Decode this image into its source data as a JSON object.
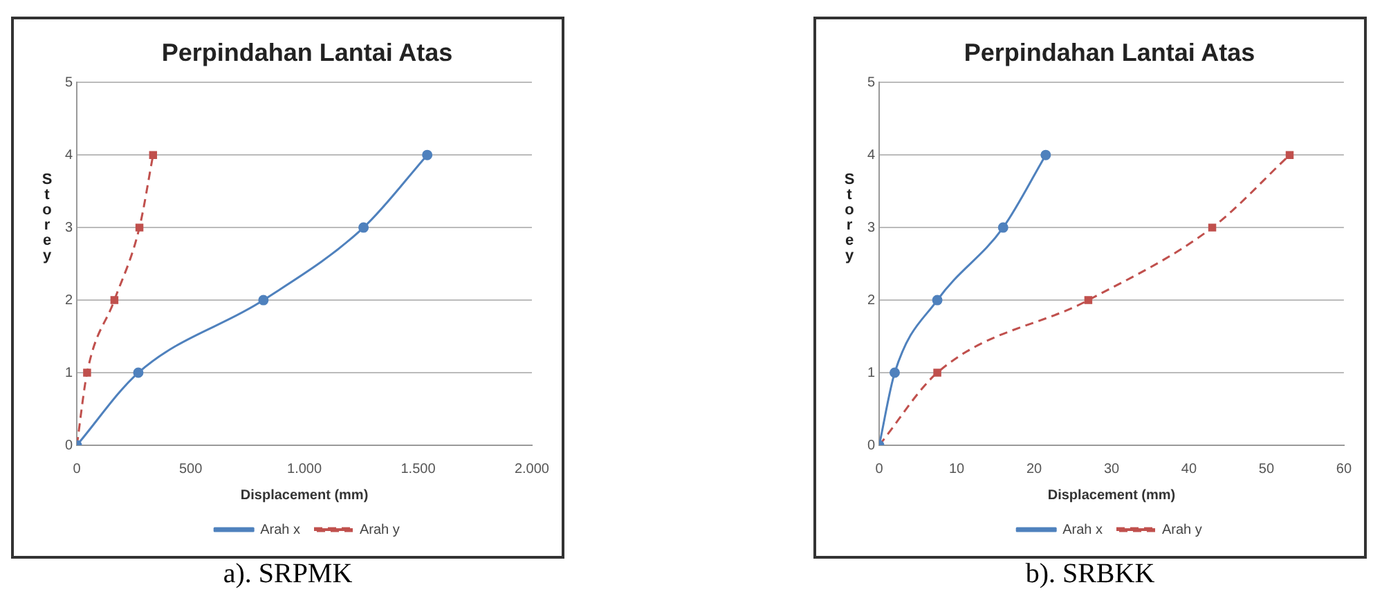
{
  "chart_data": [
    {
      "type": "line",
      "title": "Perpindahan Lantai Atas",
      "xlabel": "Displacement (mm)",
      "ylabel": "Storey",
      "xlim": [
        0,
        2000
      ],
      "xticks": [
        0,
        500,
        {
          "value": 1000,
          "label": "1.000"
        },
        {
          "value": 1500,
          "label": "1.500"
        },
        {
          "value": 2000,
          "label": "2.000"
        }
      ],
      "ylim": [
        0,
        5
      ],
      "yticks": [
        0,
        1,
        2,
        3,
        4,
        5
      ],
      "grid": "y",
      "legend": "bottom",
      "annotations": [
        "a). SRPMK"
      ],
      "series": [
        {
          "name": "Arah x",
          "color": "#4f81bd",
          "x": [
            0,
            270,
            820,
            1260,
            1540
          ],
          "values": [
            0,
            1,
            2,
            3,
            4
          ],
          "marker": "circle",
          "line_style": "solid"
        },
        {
          "name": "Arah y",
          "color": "#c0504d",
          "x": [
            0,
            45,
            165,
            275,
            335
          ],
          "values": [
            0,
            1,
            2,
            3,
            4
          ],
          "marker": "square",
          "line_style": "dashed"
        }
      ]
    },
    {
      "type": "line",
      "title": "Perpindahan Lantai Atas",
      "xlabel": "Displacement (mm)",
      "ylabel": "Storey",
      "xlim": [
        0,
        60
      ],
      "xticks": [
        0,
        10,
        20,
        30,
        40,
        50,
        60
      ],
      "ylim": [
        0,
        5
      ],
      "yticks": [
        0,
        1,
        2,
        3,
        4,
        5
      ],
      "grid": "y",
      "legend": "bottom",
      "annotations": [
        "b). SRBKK"
      ],
      "series": [
        {
          "name": "Arah x",
          "color": "#4f81bd",
          "x": [
            0,
            2,
            7.5,
            16,
            21.5
          ],
          "values": [
            0,
            1,
            2,
            3,
            4
          ],
          "marker": "circle",
          "line_style": "solid"
        },
        {
          "name": "Arah y",
          "color": "#c0504d",
          "x": [
            0,
            7.5,
            27,
            43,
            53
          ],
          "values": [
            0,
            1,
            2,
            3,
            4
          ],
          "marker": "square",
          "line_style": "dashed"
        }
      ]
    }
  ]
}
